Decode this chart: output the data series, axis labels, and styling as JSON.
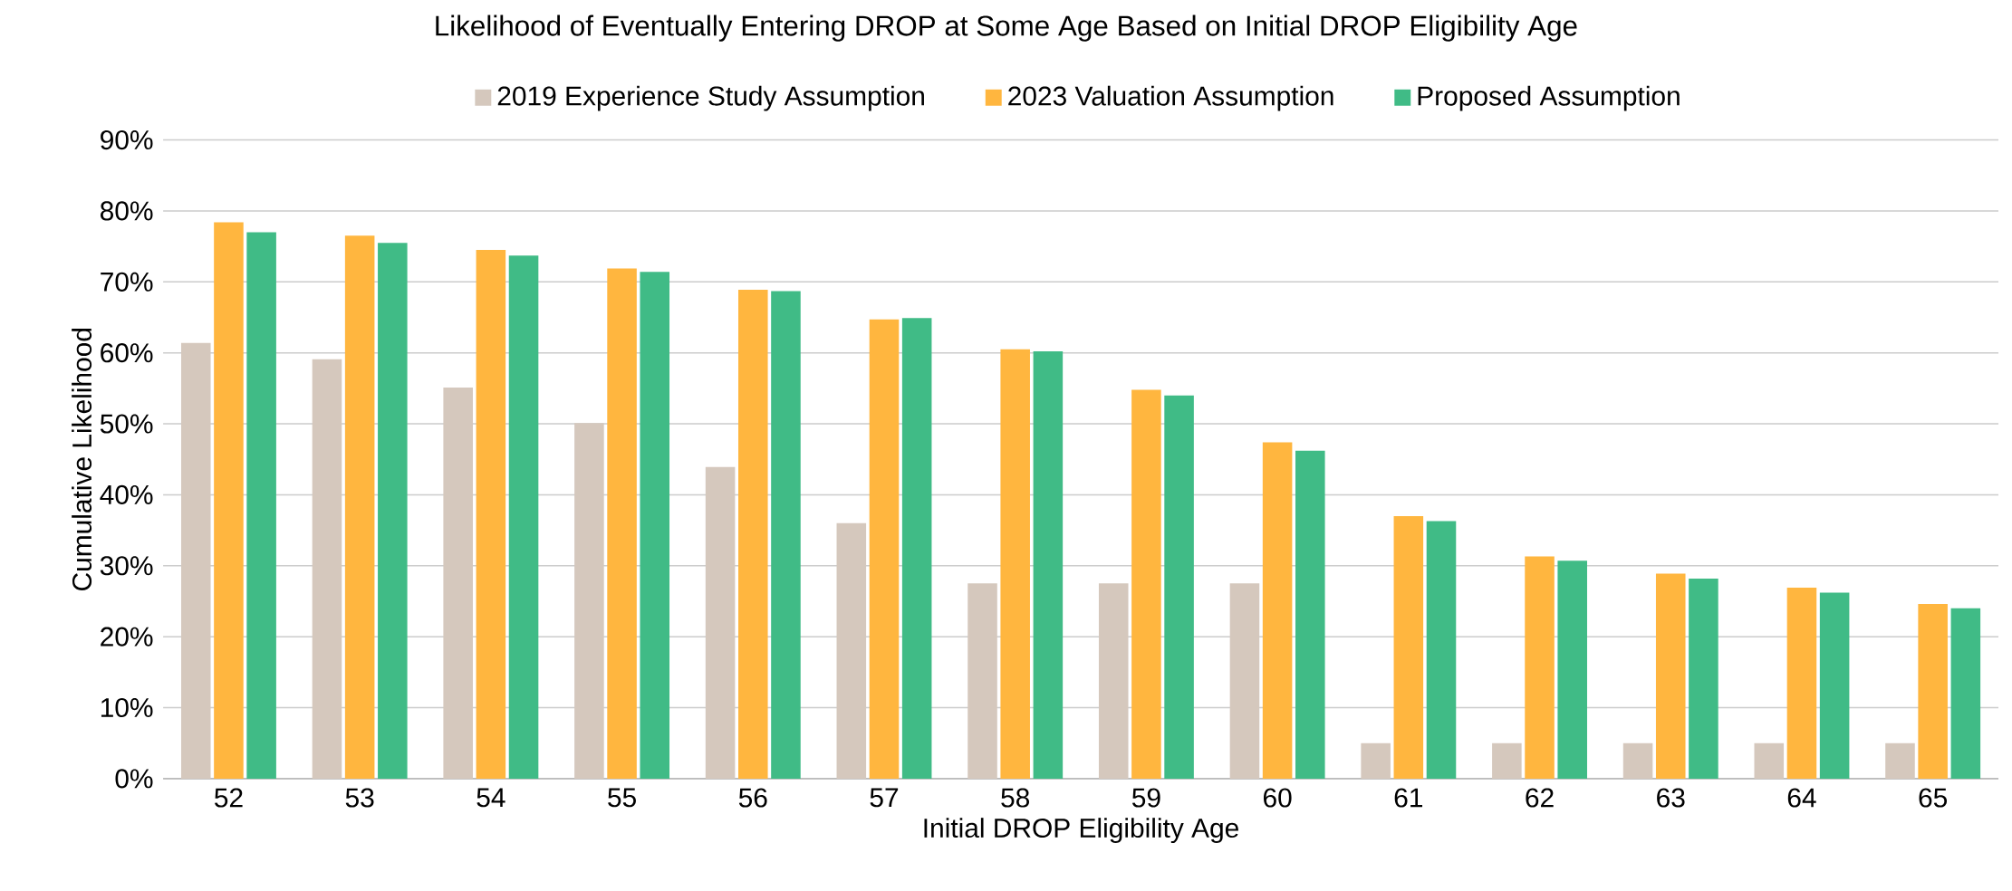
{
  "chart_data": {
    "type": "bar",
    "title": "Likelihood of Eventually Entering DROP at Some Age Based on Initial DROP Eligibility Age",
    "xlabel": "Initial DROP Eligibility Age",
    "ylabel": "Cumulative Likelihood",
    "categories": [
      "52",
      "53",
      "54",
      "55",
      "56",
      "57",
      "58",
      "59",
      "60",
      "61",
      "62",
      "63",
      "64",
      "65"
    ],
    "series": [
      {
        "name": "2019 Experience Study Assumption",
        "color": "#d5c8bd",
        "values": [
          61.4,
          59.1,
          55.1,
          50.1,
          43.9,
          36.0,
          27.5,
          27.5,
          27.5,
          5,
          5,
          5,
          5,
          5
        ]
      },
      {
        "name": "2023 Valuation Assumption",
        "color": "#ffb63f",
        "values": [
          78.4,
          76.5,
          74.5,
          71.9,
          68.9,
          64.7,
          60.5,
          54.8,
          47.4,
          37.0,
          31.3,
          28.9,
          26.9,
          24.6
        ]
      },
      {
        "name": "Proposed Assumption",
        "color": "#40bb86",
        "values": [
          77.0,
          75.5,
          73.7,
          71.4,
          68.7,
          64.9,
          60.2,
          54.0,
          46.2,
          36.3,
          30.7,
          28.2,
          26.2,
          24.0
        ]
      }
    ],
    "ylim": [
      0,
      90
    ],
    "yticks": [
      {
        "value": 0,
        "label": "0%"
      },
      {
        "value": 10,
        "label": "10%"
      },
      {
        "value": 20,
        "label": "20%"
      },
      {
        "value": 30,
        "label": "30%"
      },
      {
        "value": 40,
        "label": "40%"
      },
      {
        "value": 50,
        "label": "50%"
      },
      {
        "value": 60,
        "label": "60%"
      },
      {
        "value": 70,
        "label": "70%"
      },
      {
        "value": 80,
        "label": "80%"
      },
      {
        "value": 90,
        "label": "90%"
      }
    ],
    "grid": "y",
    "legend": "top"
  }
}
